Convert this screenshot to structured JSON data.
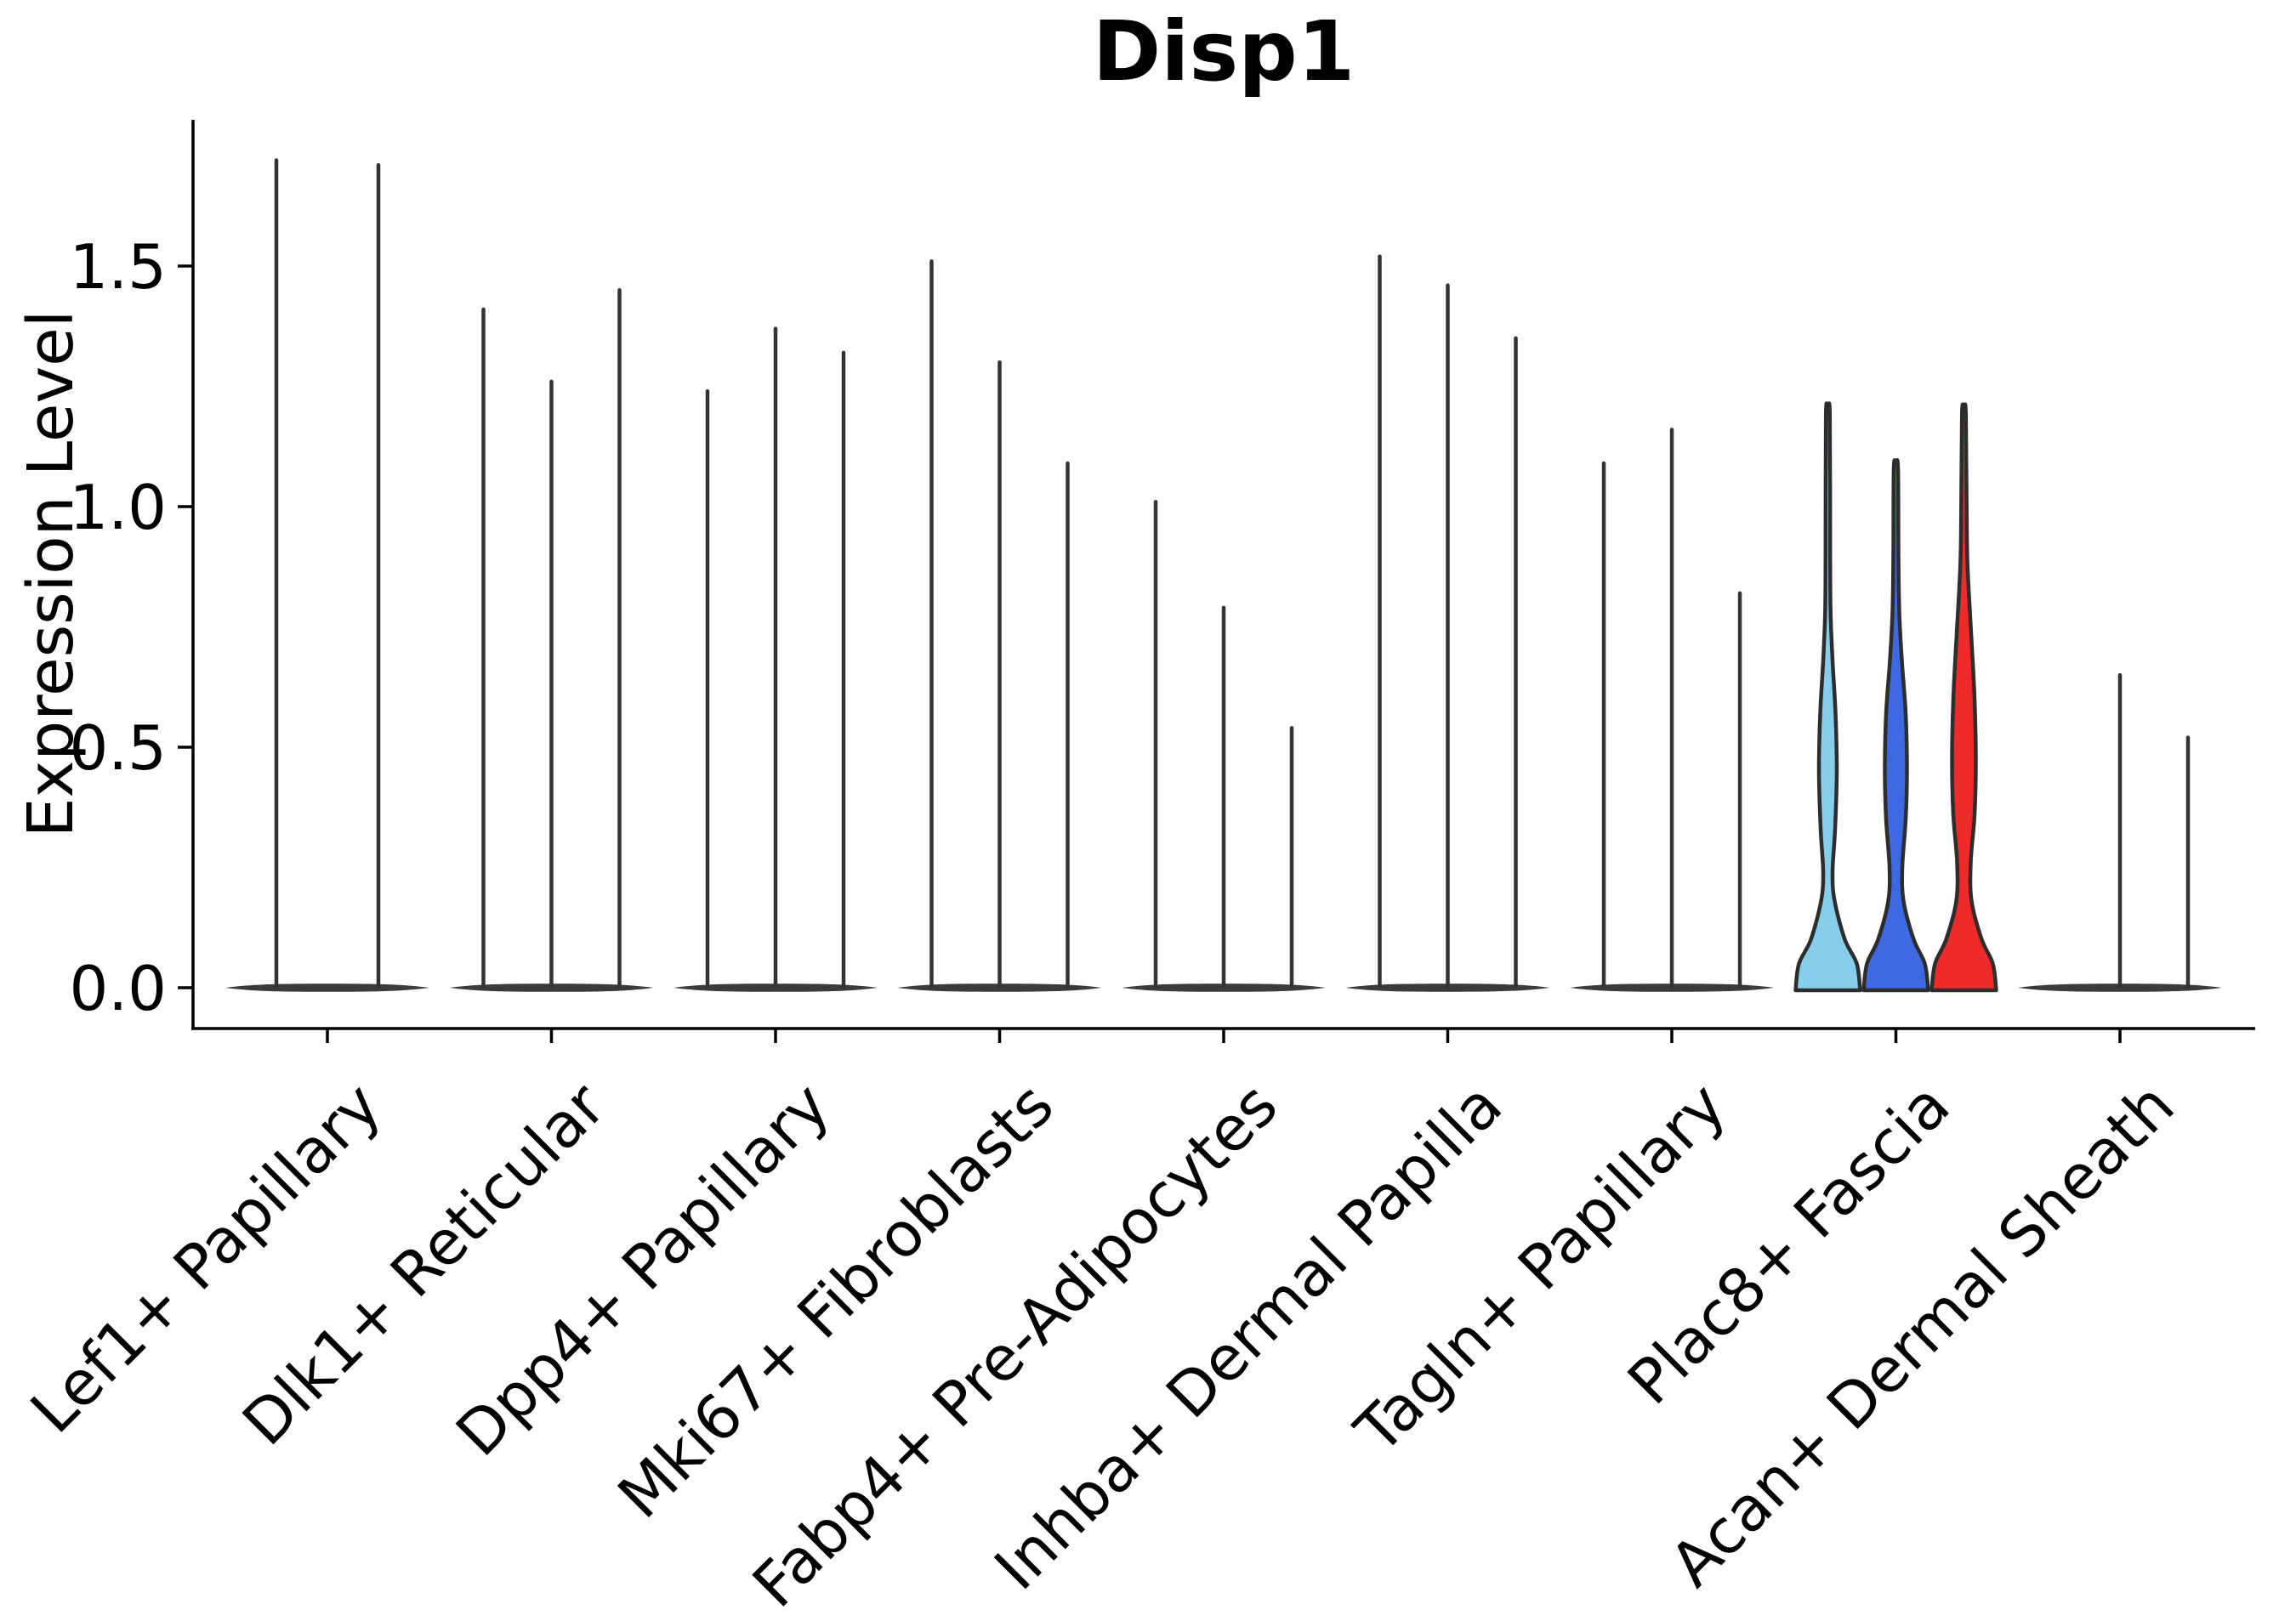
{
  "title": "Disp1",
  "chart_data": {
    "type": "violin",
    "title": "Disp1",
    "xlabel": "",
    "ylabel": "Expression Level",
    "ylim": [
      0,
      1.8
    ],
    "yticks": [
      0,
      0.5,
      1.0,
      1.5
    ],
    "ytick_labels": [
      "0.0",
      "0.5",
      "1.0",
      "1.5"
    ],
    "grid": false,
    "legend": "none",
    "categories": [
      "Lef1+ Papillary",
      "Dlk1+ Reticular",
      "Dpp4+ Papillary",
      "Mki67+ Fibroblasts",
      "Fabp4+ Pre-Adipocytes",
      "Inhba+ Dermal Papilla",
      "Tagln+ Papillary",
      "Plac8+ Fascia",
      "Acan+ Dermal Sheath"
    ],
    "groups": [
      {
        "label": "Lef1+ Papillary",
        "violins": [
          {
            "max": 1.72,
            "style": "spike"
          },
          {
            "max": 1.71,
            "style": "spike"
          }
        ]
      },
      {
        "label": "Dlk1+ Reticular",
        "violins": [
          {
            "max": 1.41,
            "style": "spike"
          },
          {
            "max": 1.26,
            "style": "spike"
          },
          {
            "max": 1.45,
            "style": "spike"
          }
        ]
      },
      {
        "label": "Dpp4+ Papillary",
        "violins": [
          {
            "max": 1.24,
            "style": "spike"
          },
          {
            "max": 1.37,
            "style": "spike"
          },
          {
            "max": 1.32,
            "style": "spike"
          }
        ]
      },
      {
        "label": "Mki67+ Fibroblasts",
        "violins": [
          {
            "max": 1.51,
            "style": "spike"
          },
          {
            "max": 1.3,
            "style": "spike"
          },
          {
            "max": 1.09,
            "style": "spike"
          }
        ]
      },
      {
        "label": "Fabp4+ Pre-Adipocytes",
        "violins": [
          {
            "max": 1.01,
            "style": "spike"
          },
          {
            "max": 0.79,
            "style": "spike"
          },
          {
            "max": 0.54,
            "style": "spike"
          }
        ]
      },
      {
        "label": "Inhba+ Dermal Papilla",
        "violins": [
          {
            "max": 1.52,
            "style": "spike"
          },
          {
            "max": 1.46,
            "style": "spike"
          },
          {
            "max": 1.35,
            "style": "spike"
          }
        ]
      },
      {
        "label": "Tagln+ Papillary",
        "violins": [
          {
            "max": 1.09,
            "style": "spike"
          },
          {
            "max": 1.16,
            "style": "spike"
          },
          {
            "max": 0.82,
            "style": "spike"
          }
        ]
      },
      {
        "label": "Plac8+ Fascia",
        "violins": [
          {
            "max": 1.19,
            "style": "filled",
            "color": "#87CEEB",
            "profile": [
              [
                0,
                38
              ],
              [
                0.05,
                34
              ],
              [
                0.1,
                20
              ],
              [
                0.18,
                8
              ],
              [
                0.24,
                5.5
              ],
              [
                0.33,
                8.5
              ],
              [
                0.45,
                10.5
              ],
              [
                0.57,
                9
              ],
              [
                0.68,
                5.5
              ],
              [
                0.78,
                3.2
              ],
              [
                0.9,
                2.7
              ],
              [
                1.19,
                2.3
              ]
            ]
          },
          {
            "max": 1.08,
            "style": "filled",
            "color": "#3F69E1",
            "profile": [
              [
                0,
                38
              ],
              [
                0.05,
                34
              ],
              [
                0.1,
                21
              ],
              [
                0.18,
                9
              ],
              [
                0.25,
                7.5
              ],
              [
                0.35,
                11.5
              ],
              [
                0.45,
                13
              ],
              [
                0.57,
                11.5
              ],
              [
                0.68,
                7
              ],
              [
                0.78,
                4
              ],
              [
                0.9,
                3
              ],
              [
                1.08,
                2.5
              ]
            ]
          },
          {
            "max": 1.19,
            "style": "filled",
            "color": "#EF2A2A",
            "profile": [
              [
                0,
                38
              ],
              [
                0.05,
                34
              ],
              [
                0.1,
                21
              ],
              [
                0.18,
                9
              ],
              [
                0.26,
                8
              ],
              [
                0.36,
                12.5
              ],
              [
                0.47,
                14
              ],
              [
                0.6,
                12.5
              ],
              [
                0.72,
                9
              ],
              [
                0.83,
                5.5
              ],
              [
                0.93,
                3.5
              ],
              [
                1.19,
                2.3
              ]
            ]
          }
        ]
      },
      {
        "label": "Acan+ Dermal Sheath",
        "violins": [
          {
            "max": 0,
            "style": "spike"
          },
          {
            "max": 0.65,
            "style": "spike"
          },
          {
            "max": 0.52,
            "style": "spike"
          }
        ]
      }
    ],
    "colors": {
      "spike": "#333333",
      "zero_disc": "#3b3b3b",
      "violin_outline": "#2d2d2d",
      "axis": "#000000",
      "background": "#ffffff"
    }
  }
}
